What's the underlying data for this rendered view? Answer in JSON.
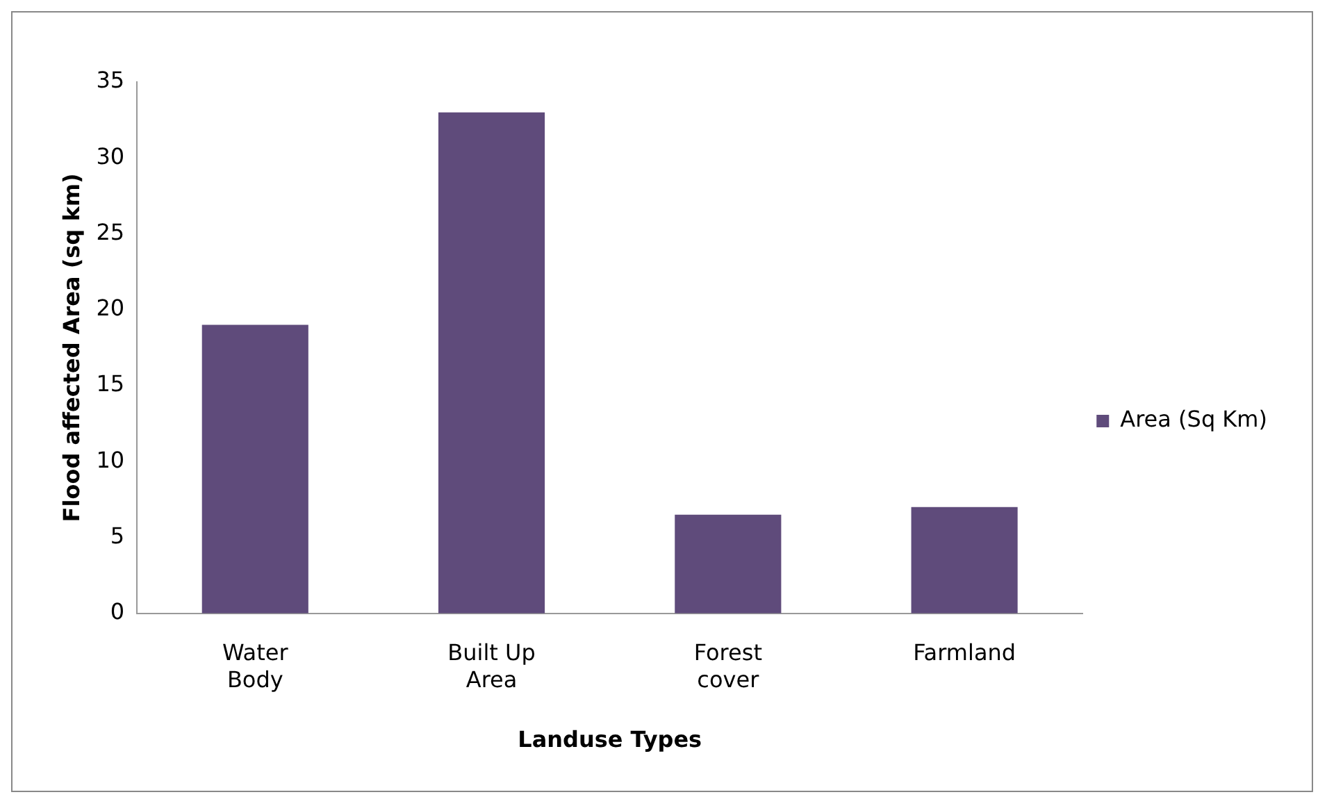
{
  "chart_data": {
    "type": "bar",
    "xlabel": "Landuse Types",
    "ylabel": "Flood affected Area (sq km)",
    "categories": [
      "Water Body",
      "Built Up Area",
      "Forest cover",
      "Farmland"
    ],
    "series": [
      {
        "name": "Area (Sq Km)",
        "color": "#5f4b7b",
        "values": [
          19,
          33,
          6.5,
          7
        ]
      }
    ],
    "ylim": [
      0,
      35
    ],
    "yticks": [
      0,
      5,
      10,
      15,
      20,
      25,
      30,
      35
    ],
    "grid": false,
    "legend": "right"
  }
}
